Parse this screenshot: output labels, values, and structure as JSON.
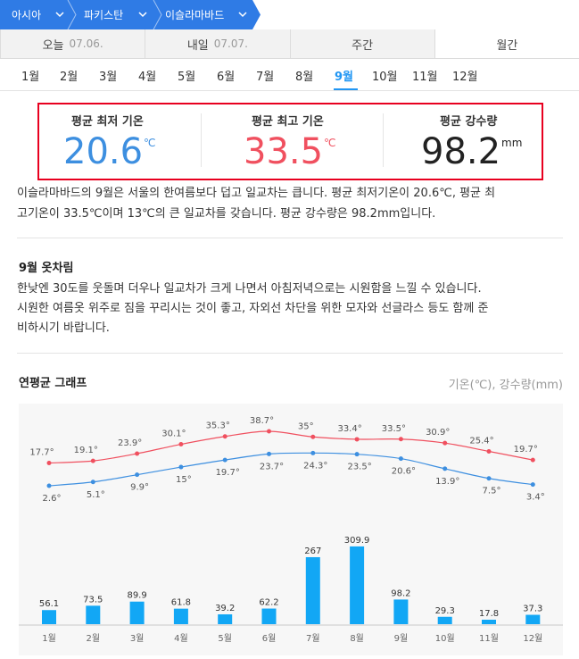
{
  "breadcrumb": [
    {
      "label": "아시아"
    },
    {
      "label": "파키스탄"
    },
    {
      "label": "이슬라마바드"
    }
  ],
  "tabs": [
    {
      "label": "오늘",
      "date": "07.06."
    },
    {
      "label": "내일",
      "date": "07.07."
    },
    {
      "label": "주간",
      "date": ""
    },
    {
      "label": "월간",
      "date": ""
    }
  ],
  "months": [
    "1월",
    "2월",
    "3월",
    "4월",
    "5월",
    "6월",
    "7월",
    "8월",
    "9월",
    "10월",
    "11월",
    "12월"
  ],
  "selected_month": "9월",
  "summary": {
    "min_label": "평균 최저 기온",
    "min_value": "20.6",
    "min_unit": "℃",
    "max_label": "평균 최고 기온",
    "max_value": "33.5",
    "max_unit": "℃",
    "rain_label": "평균 강수량",
    "rain_value": "98.2",
    "rain_unit": "mm"
  },
  "description_lines": [
    "이슬라마바드의 9월은 서울의 한여름보다 덥고 일교차는 큽니다. 평균 최저기온이 20.6℃, 평균 최",
    "고기온이 33.5℃이며 13℃의 큰 일교차를 갖습니다. 평균 강수량은 98.2mm입니다."
  ],
  "clothes": {
    "title": "9월 옷차림",
    "lines": [
      "한낮엔 30도를 웃돌며 더우나 일교차가 크게 나면서 아침저녁으로는 시원함을 느낄 수 있습니다.",
      "시원한 여름옷 위주로 짐을 꾸리시는 것이 좋고, 자외선 차단을 위한 모자와 선글라스 등도 함께 준",
      "비하시기 바랍니다."
    ]
  },
  "graph": {
    "title": "연평균 그래프",
    "unit_label": "기온(℃), 강수량(mm)"
  },
  "colors": {
    "accent": "#2196f3",
    "breadcrumb_bg": "#2f7be5",
    "max_temp": "#f0505f",
    "min_temp": "#3d8fe0",
    "rain_bar": "#12a7f5",
    "highlight_border": "#e8001f"
  },
  "chart_data": {
    "type": "bar",
    "categories": [
      "1월",
      "2월",
      "3월",
      "4월",
      "5월",
      "6월",
      "7월",
      "8월",
      "9월",
      "10월",
      "11월",
      "12월"
    ],
    "series": [
      {
        "name": "최고기온",
        "type": "line",
        "values": [
          17.7,
          19.1,
          23.9,
          30.1,
          35.3,
          38.7,
          35,
          33.4,
          33.5,
          30.9,
          25.4,
          19.7
        ]
      },
      {
        "name": "최저기온",
        "type": "line",
        "values": [
          2.6,
          5.1,
          9.9,
          15,
          19.7,
          23.7,
          24.3,
          23.5,
          20.6,
          13.9,
          7.5,
          3.4
        ]
      },
      {
        "name": "강수량",
        "type": "bar",
        "values": [
          56.1,
          73.5,
          89.9,
          61.8,
          39.2,
          62.2,
          267,
          309.9,
          98.2,
          29.3,
          17.8,
          37.3
        ]
      }
    ],
    "temp_labels_max": [
      "17.7°",
      "19.1°",
      "23.9°",
      "30.1°",
      "35.3°",
      "38.7°",
      "35°",
      "33.4°",
      "33.5°",
      "30.9°",
      "25.4°",
      "19.7°"
    ],
    "temp_labels_min": [
      "2.6°",
      "5.1°",
      "9.9°",
      "15°",
      "19.7°",
      "23.7°",
      "24.3°",
      "23.5°",
      "20.6°",
      "13.9°",
      "7.5°",
      "3.4°"
    ],
    "grid": false
  }
}
